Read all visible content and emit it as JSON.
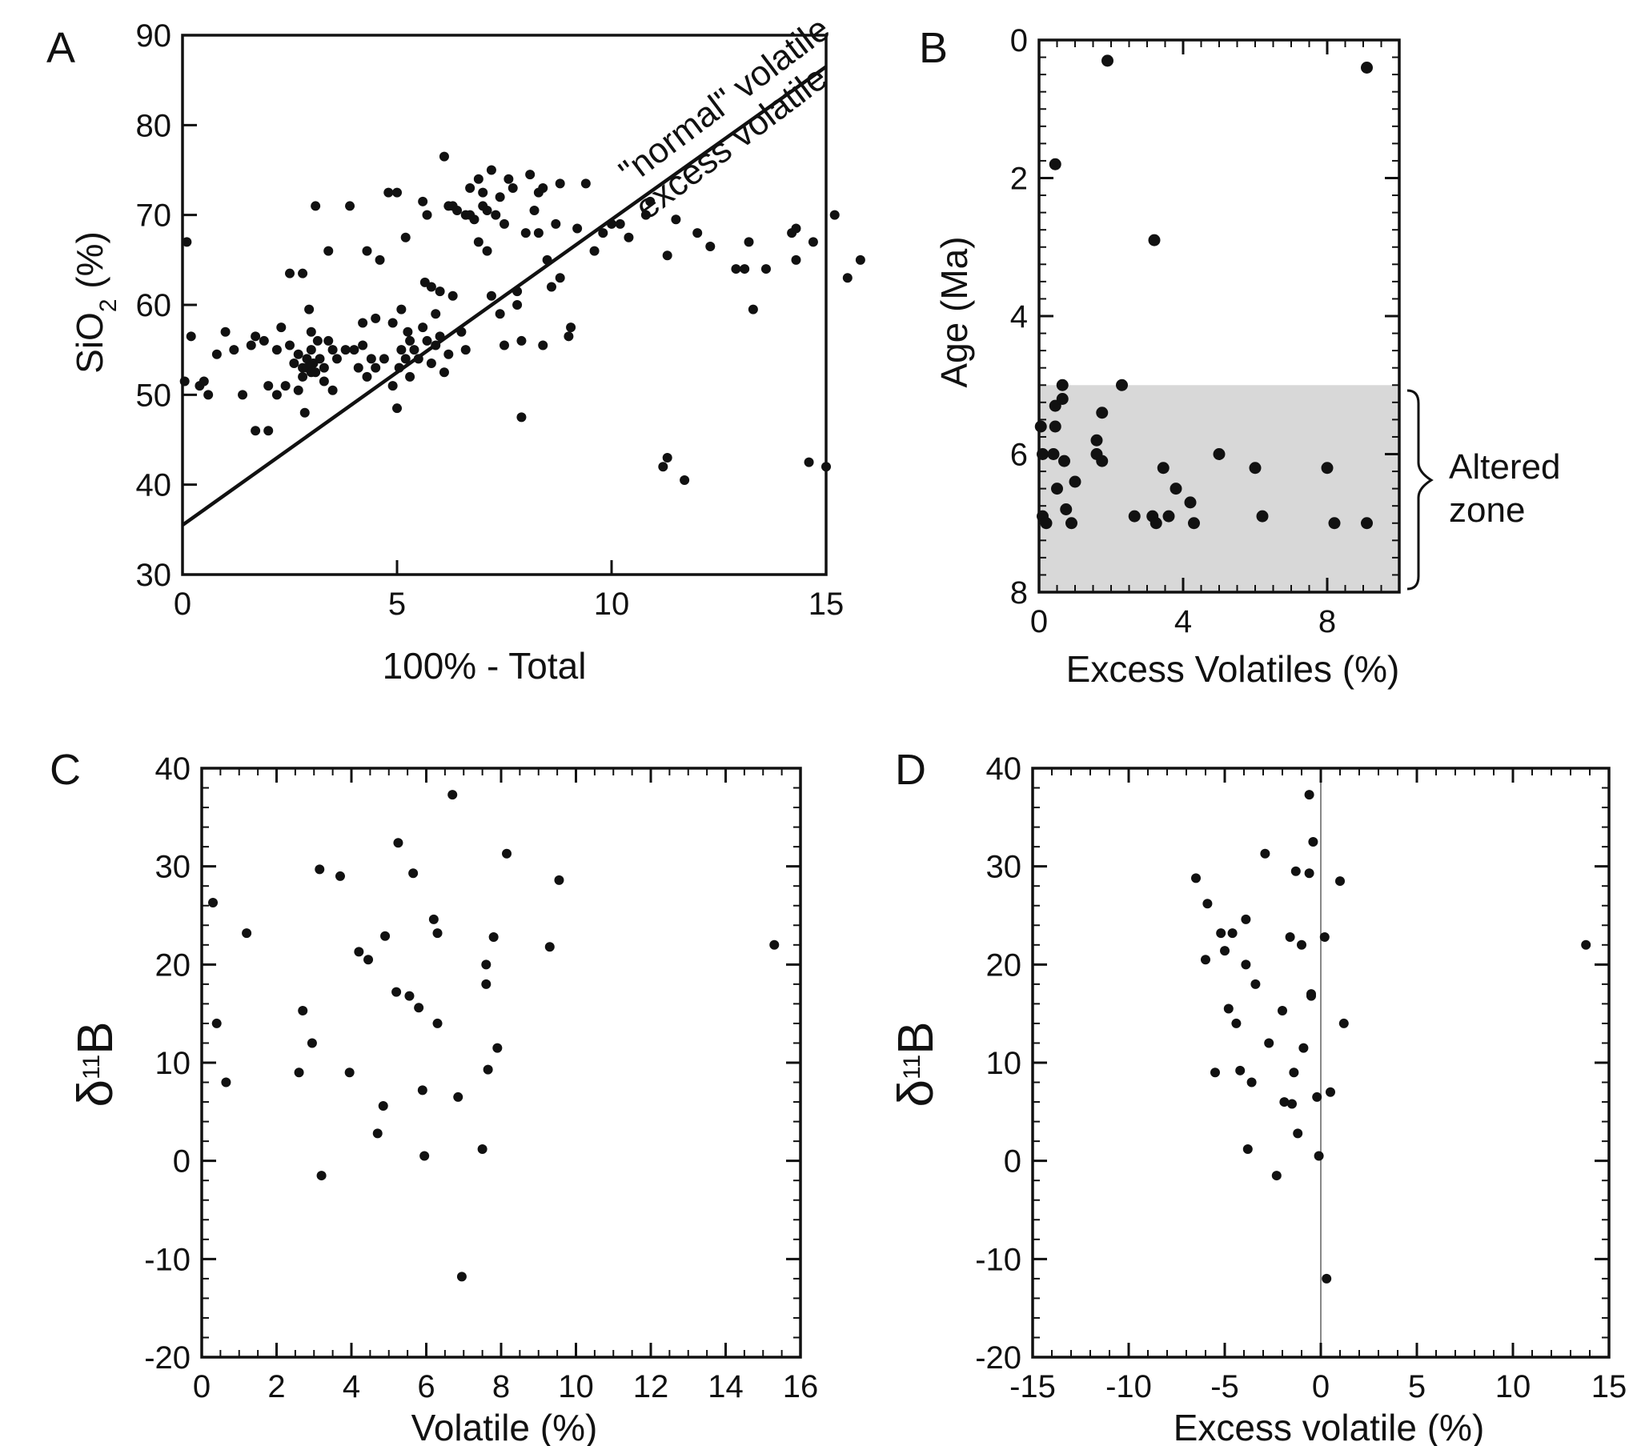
{
  "chart_data": [
    {
      "id": "A",
      "type": "scatter",
      "panel_label": "A",
      "xlabel": "100% - Total",
      "ylabel_main": "SiO",
      "ylabel_sub": "2",
      "ylabel_tail": " (%)",
      "xlim": [
        0,
        15
      ],
      "ylim": [
        30,
        90
      ],
      "xticks": [
        0,
        5,
        10,
        15
      ],
      "yticks": [
        30,
        40,
        50,
        60,
        70,
        80,
        90
      ],
      "line": {
        "x": [
          0,
          15
        ],
        "y": [
          35.5,
          86.5
        ]
      },
      "annotations": [
        "\"normal\" volatile",
        "excess volatile"
      ],
      "points": [
        [
          0.05,
          51.5
        ],
        [
          0.1,
          67
        ],
        [
          0.2,
          56.5
        ],
        [
          0.4,
          51
        ],
        [
          0.5,
          51.5
        ],
        [
          0.6,
          50
        ],
        [
          0.8,
          54.5
        ],
        [
          1.0,
          57
        ],
        [
          1.2,
          55
        ],
        [
          1.4,
          50
        ],
        [
          1.6,
          55.5
        ],
        [
          1.7,
          56.5
        ],
        [
          1.7,
          46
        ],
        [
          1.9,
          56
        ],
        [
          2.0,
          46
        ],
        [
          2.0,
          51
        ],
        [
          2.2,
          50
        ],
        [
          2.2,
          55
        ],
        [
          2.3,
          57.5
        ],
        [
          2.4,
          51
        ],
        [
          2.5,
          55.5
        ],
        [
          2.5,
          63.5
        ],
        [
          2.6,
          53.5
        ],
        [
          2.7,
          50.5
        ],
        [
          2.7,
          54.5
        ],
        [
          2.8,
          52
        ],
        [
          2.8,
          53
        ],
        [
          2.8,
          63.5
        ],
        [
          2.85,
          48
        ],
        [
          2.9,
          54
        ],
        [
          2.9,
          53
        ],
        [
          2.95,
          59.5
        ],
        [
          3.0,
          52.5
        ],
        [
          3.0,
          55
        ],
        [
          3.0,
          57
        ],
        [
          3.05,
          53.5
        ],
        [
          3.1,
          52.5
        ],
        [
          3.1,
          71
        ],
        [
          3.15,
          56
        ],
        [
          3.2,
          54
        ],
        [
          3.3,
          53
        ],
        [
          3.3,
          51.5
        ],
        [
          3.4,
          66
        ],
        [
          3.4,
          56
        ],
        [
          3.5,
          55
        ],
        [
          3.5,
          50.5
        ],
        [
          3.6,
          54
        ],
        [
          3.8,
          55
        ],
        [
          3.9,
          71
        ],
        [
          4.0,
          55
        ],
        [
          4.1,
          53
        ],
        [
          4.2,
          55.5
        ],
        [
          4.2,
          58
        ],
        [
          4.3,
          52
        ],
        [
          4.3,
          66
        ],
        [
          4.4,
          54
        ],
        [
          4.5,
          53
        ],
        [
          4.5,
          58.5
        ],
        [
          4.6,
          65
        ],
        [
          4.7,
          54
        ],
        [
          4.8,
          72.5
        ],
        [
          4.9,
          58
        ],
        [
          4.9,
          51
        ],
        [
          5.0,
          48.5
        ],
        [
          5.0,
          72.5
        ],
        [
          5.05,
          53
        ],
        [
          5.1,
          55
        ],
        [
          5.1,
          59.5
        ],
        [
          5.2,
          67.5
        ],
        [
          5.2,
          54
        ],
        [
          5.25,
          57
        ],
        [
          5.3,
          52
        ],
        [
          5.3,
          56
        ],
        [
          5.4,
          55
        ],
        [
          5.5,
          54
        ],
        [
          5.6,
          71.5
        ],
        [
          5.6,
          57.5
        ],
        [
          5.65,
          62.5
        ],
        [
          5.7,
          56
        ],
        [
          5.7,
          70
        ],
        [
          5.8,
          62
        ],
        [
          5.8,
          53.5
        ],
        [
          5.9,
          55.5
        ],
        [
          5.9,
          59
        ],
        [
          6.0,
          61.5
        ],
        [
          6.0,
          56.5
        ],
        [
          6.1,
          76.5
        ],
        [
          6.1,
          52.5
        ],
        [
          6.2,
          71
        ],
        [
          6.2,
          54.5
        ],
        [
          6.3,
          61
        ],
        [
          6.3,
          71
        ],
        [
          6.4,
          70.5
        ],
        [
          6.5,
          57
        ],
        [
          6.6,
          55
        ],
        [
          6.6,
          70
        ],
        [
          6.7,
          73
        ],
        [
          6.7,
          70
        ],
        [
          6.8,
          69.5
        ],
        [
          6.9,
          67
        ],
        [
          6.9,
          74
        ],
        [
          7.0,
          71
        ],
        [
          7.0,
          72.5
        ],
        [
          7.1,
          70.5
        ],
        [
          7.1,
          66
        ],
        [
          7.2,
          61
        ],
        [
          7.2,
          75
        ],
        [
          7.3,
          70
        ],
        [
          7.4,
          72
        ],
        [
          7.4,
          59
        ],
        [
          7.5,
          55.5
        ],
        [
          7.5,
          69
        ],
        [
          7.6,
          74
        ],
        [
          7.7,
          73
        ],
        [
          7.8,
          60
        ],
        [
          7.8,
          61.5
        ],
        [
          7.9,
          56
        ],
        [
          7.9,
          47.5
        ],
        [
          8.0,
          68
        ],
        [
          8.1,
          74.5
        ],
        [
          8.2,
          70.5
        ],
        [
          8.3,
          72.5
        ],
        [
          8.3,
          68
        ],
        [
          8.4,
          73
        ],
        [
          8.4,
          55.5
        ],
        [
          8.5,
          65
        ],
        [
          8.6,
          62
        ],
        [
          8.7,
          69
        ],
        [
          8.8,
          73.5
        ],
        [
          8.8,
          63
        ],
        [
          9.0,
          56.5
        ],
        [
          9.05,
          57.5
        ],
        [
          9.2,
          68.5
        ],
        [
          9.4,
          73.5
        ],
        [
          9.6,
          66
        ],
        [
          9.8,
          68
        ],
        [
          10.0,
          69
        ],
        [
          10.2,
          69
        ],
        [
          10.4,
          67.5
        ],
        [
          10.8,
          70
        ],
        [
          10.9,
          71.5
        ],
        [
          11.2,
          42
        ],
        [
          11.3,
          43
        ],
        [
          11.3,
          65.5
        ],
        [
          11.5,
          69.5
        ],
        [
          11.7,
          40.5
        ],
        [
          12.0,
          68
        ],
        [
          12.3,
          66.5
        ],
        [
          12.9,
          64
        ],
        [
          13.1,
          64
        ],
        [
          13.2,
          67
        ],
        [
          13.3,
          59.5
        ],
        [
          13.6,
          64
        ],
        [
          14.2,
          68
        ],
        [
          14.3,
          68.5
        ],
        [
          14.3,
          65
        ],
        [
          14.7,
          67
        ],
        [
          15.0,
          42
        ],
        [
          15.2,
          70
        ],
        [
          15.5,
          63
        ],
        [
          15.8,
          65
        ],
        [
          14.6,
          42.5
        ]
      ]
    },
    {
      "id": "B",
      "type": "scatter",
      "panel_label": "B",
      "xlabel": "Excess Volatiles (%)",
      "ylabel": "Age (Ma)",
      "xlim": [
        0,
        10
      ],
      "ylim": [
        0,
        8
      ],
      "y_inverted": true,
      "xticks": [
        0,
        4,
        8
      ],
      "yticks": [
        0,
        2,
        4,
        6,
        8
      ],
      "shaded_band": {
        "y0": 5,
        "y1": 8,
        "label": "Altered zone"
      },
      "annotation_lines": [
        "Altered",
        "zone"
      ],
      "points": [
        [
          1.9,
          0.3
        ],
        [
          9.1,
          0.4
        ],
        [
          0.45,
          1.8
        ],
        [
          3.2,
          2.9
        ],
        [
          0.05,
          5.6
        ],
        [
          0.1,
          6.0
        ],
        [
          0.1,
          6.9
        ],
        [
          0.2,
          7.0
        ],
        [
          0.4,
          6.0
        ],
        [
          0.45,
          5.6
        ],
        [
          0.45,
          5.3
        ],
        [
          0.5,
          6.5
        ],
        [
          0.65,
          5.0
        ],
        [
          0.65,
          5.2
        ],
        [
          0.7,
          6.1
        ],
        [
          0.75,
          6.8
        ],
        [
          0.9,
          7.0
        ],
        [
          1.0,
          6.4
        ],
        [
          1.6,
          5.8
        ],
        [
          1.6,
          6.0
        ],
        [
          1.75,
          6.1
        ],
        [
          1.75,
          5.4
        ],
        [
          2.3,
          5.0
        ],
        [
          2.65,
          6.9
        ],
        [
          3.15,
          6.9
        ],
        [
          3.25,
          7.0
        ],
        [
          3.45,
          6.2
        ],
        [
          3.6,
          6.9
        ],
        [
          3.8,
          6.5
        ],
        [
          4.2,
          6.7
        ],
        [
          4.3,
          7.0
        ],
        [
          5.0,
          6.0
        ],
        [
          6.0,
          6.2
        ],
        [
          6.2,
          6.9
        ],
        [
          8.0,
          6.2
        ],
        [
          8.2,
          7.0
        ],
        [
          9.1,
          7.0
        ]
      ]
    },
    {
      "id": "C",
      "type": "scatter",
      "panel_label": "C",
      "xlabel": "Volatile (%)",
      "ylabel_greek": "δ",
      "ylabel_sup": "11",
      "ylabel_tail": "B",
      "xlim": [
        0,
        16
      ],
      "ylim": [
        -20,
        40
      ],
      "xticks": [
        0,
        2,
        4,
        6,
        8,
        10,
        12,
        14,
        16
      ],
      "yticks": [
        -20,
        -10,
        0,
        10,
        20,
        30,
        40
      ],
      "points": [
        [
          0.3,
          26.3
        ],
        [
          0.4,
          14
        ],
        [
          0.65,
          8
        ],
        [
          1.2,
          23.2
        ],
        [
          2.6,
          9
        ],
        [
          2.7,
          15.3
        ],
        [
          2.95,
          12
        ],
        [
          3.15,
          29.7
        ],
        [
          3.2,
          -1.5
        ],
        [
          3.7,
          29
        ],
        [
          3.95,
          9
        ],
        [
          4.2,
          21.3
        ],
        [
          4.45,
          20.5
        ],
        [
          4.7,
          2.8
        ],
        [
          4.85,
          5.6
        ],
        [
          4.9,
          22.9
        ],
        [
          5.2,
          17.2
        ],
        [
          5.25,
          32.4
        ],
        [
          5.55,
          16.8
        ],
        [
          5.65,
          29.3
        ],
        [
          5.8,
          15.6
        ],
        [
          5.9,
          7.2
        ],
        [
          5.95,
          0.5
        ],
        [
          6.2,
          24.6
        ],
        [
          6.3,
          23.2
        ],
        [
          6.3,
          14
        ],
        [
          6.7,
          37.3
        ],
        [
          6.85,
          6.5
        ],
        [
          6.95,
          -11.8
        ],
        [
          7.5,
          1.2
        ],
        [
          7.6,
          20
        ],
        [
          7.6,
          18
        ],
        [
          7.65,
          9.3
        ],
        [
          7.8,
          22.8
        ],
        [
          7.9,
          11.5
        ],
        [
          8.15,
          31.3
        ],
        [
          9.3,
          21.8
        ],
        [
          9.55,
          28.6
        ],
        [
          15.3,
          22
        ]
      ]
    },
    {
      "id": "D",
      "type": "scatter",
      "panel_label": "D",
      "xlabel": "Excess volatile (%)",
      "ylabel_greek": "δ",
      "ylabel_sup": "11",
      "ylabel_tail": "B",
      "xlim": [
        -15,
        15
      ],
      "ylim": [
        -20,
        40
      ],
      "xticks": [
        -15,
        -10,
        -5,
        0,
        5,
        10,
        15
      ],
      "yticks": [
        -20,
        -10,
        0,
        10,
        20,
        30,
        40
      ],
      "vline_x": 0,
      "points": [
        [
          -6.5,
          28.8
        ],
        [
          -5.9,
          26.2
        ],
        [
          -6.0,
          20.5
        ],
        [
          -5.5,
          9
        ],
        [
          -5.2,
          23.2
        ],
        [
          -5.0,
          21.4
        ],
        [
          -4.8,
          15.5
        ],
        [
          -4.6,
          23.2
        ],
        [
          -4.4,
          14
        ],
        [
          -4.2,
          9.2
        ],
        [
          -3.9,
          24.6
        ],
        [
          -3.9,
          20
        ],
        [
          -3.8,
          1.2
        ],
        [
          -3.6,
          8
        ],
        [
          -3.4,
          18
        ],
        [
          -2.9,
          31.3
        ],
        [
          -2.7,
          12
        ],
        [
          -2.3,
          -1.5
        ],
        [
          -2.0,
          15.3
        ],
        [
          -1.9,
          6
        ],
        [
          -1.6,
          22.8
        ],
        [
          -1.5,
          5.8
        ],
        [
          -1.4,
          9
        ],
        [
          -1.3,
          29.5
        ],
        [
          -1.2,
          2.8
        ],
        [
          -1.0,
          22
        ],
        [
          -0.9,
          11.5
        ],
        [
          -0.6,
          37.3
        ],
        [
          -0.6,
          29.3
        ],
        [
          -0.5,
          17
        ],
        [
          -0.5,
          16.8
        ],
        [
          -0.4,
          32.5
        ],
        [
          -0.2,
          6.5
        ],
        [
          -0.1,
          0.5
        ],
        [
          0.2,
          22.8
        ],
        [
          0.3,
          -12
        ],
        [
          0.5,
          7
        ],
        [
          1.0,
          28.5
        ],
        [
          1.2,
          14
        ],
        [
          13.8,
          22
        ]
      ]
    }
  ]
}
